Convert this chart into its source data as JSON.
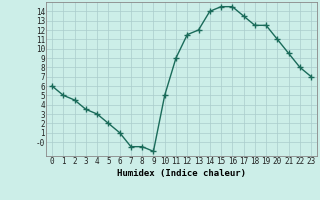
{
  "x": [
    0,
    1,
    2,
    3,
    4,
    5,
    6,
    7,
    8,
    9,
    10,
    11,
    12,
    13,
    14,
    15,
    16,
    17,
    18,
    19,
    20,
    21,
    22,
    23
  ],
  "y": [
    6,
    5,
    4.5,
    3.5,
    3,
    2,
    1,
    -0.5,
    -0.5,
    -1,
    5,
    9,
    11.5,
    12,
    14,
    14.5,
    14.5,
    13.5,
    12.5,
    12.5,
    11,
    9.5,
    8,
    7
  ],
  "line_color": "#1a6b5a",
  "marker": "+",
  "marker_size": 4,
  "xlabel": "Humidex (Indice chaleur)",
  "xlim": [
    -0.5,
    23.5
  ],
  "ylim": [
    -1.5,
    15.0
  ],
  "xticks": [
    0,
    1,
    2,
    3,
    4,
    5,
    6,
    7,
    8,
    9,
    10,
    11,
    12,
    13,
    14,
    15,
    16,
    17,
    18,
    19,
    20,
    21,
    22,
    23
  ],
  "yticks": [
    0,
    1,
    2,
    3,
    4,
    5,
    6,
    7,
    8,
    9,
    10,
    11,
    12,
    13,
    14
  ],
  "ytick_labels": [
    "-0",
    "1",
    "2",
    "3",
    "4",
    "5",
    "6",
    "7",
    "8",
    "9",
    "10",
    "11",
    "12",
    "13",
    "14"
  ],
  "bg_color": "#cceee8",
  "grid_color": "#aacccc",
  "line_width": 1.0,
  "tick_fontsize": 5.5,
  "xlabel_fontsize": 6.5
}
